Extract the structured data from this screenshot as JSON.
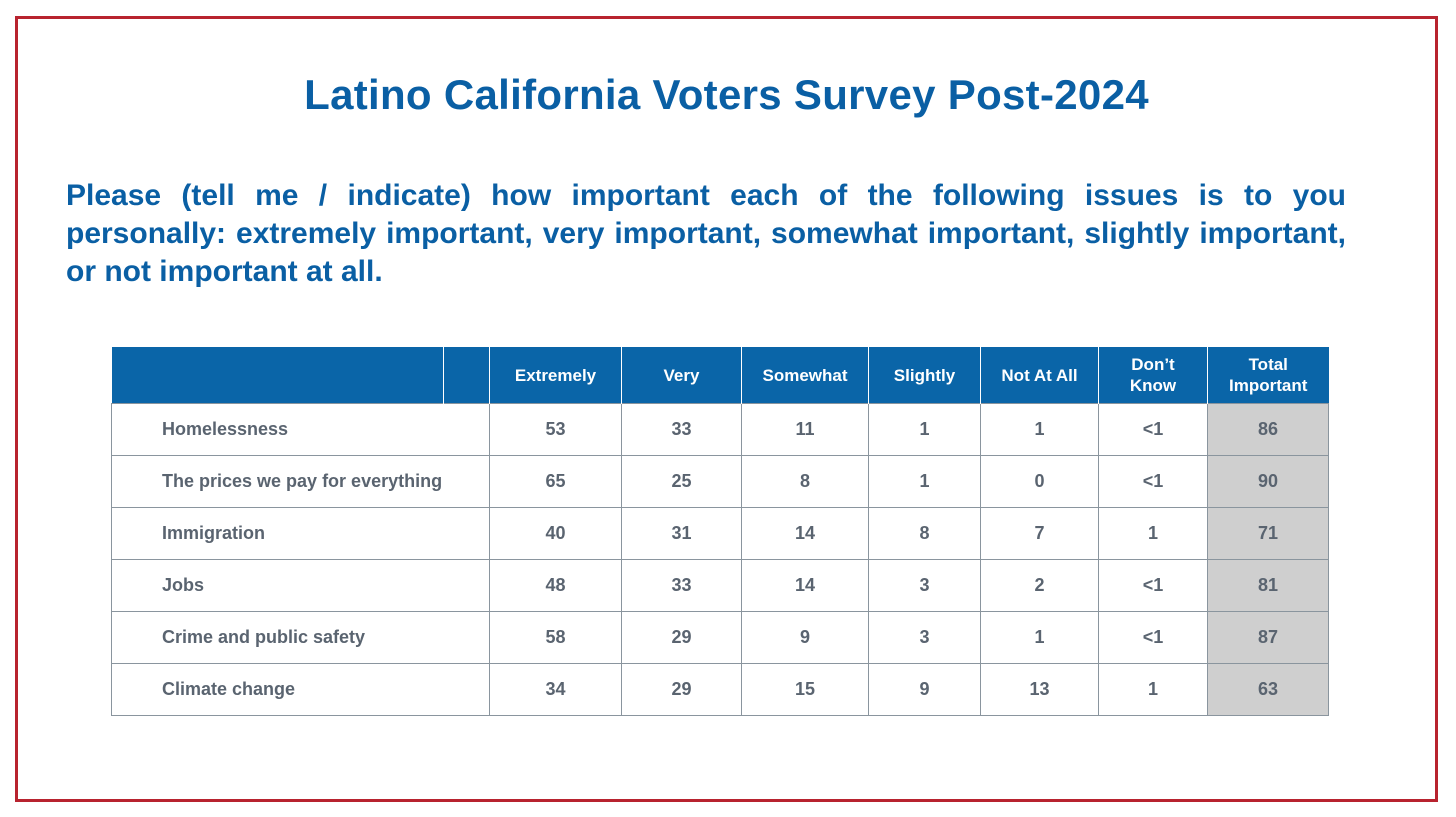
{
  "slide": {
    "title": "Latino California Voters Survey Post-2024",
    "question": "Please (tell me / indicate) how important each of the following issues is to you personally: extremely important, very important, somewhat important, slightly important, or not important at all.",
    "border_color": "#b8232f",
    "accent_color": "#0a5fa4"
  },
  "table": {
    "header_color": "#0a65a8",
    "total_column_color": "#cfcfcf",
    "columns": [
      "",
      "Extremely",
      "Very",
      "Somewhat",
      "Slightly",
      "Not At All",
      "Don’t Know",
      "Total Important"
    ],
    "rows": [
      {
        "issue": "Homelessness",
        "values": [
          "53",
          "33",
          "11",
          "1",
          "1",
          "<1",
          "86"
        ]
      },
      {
        "issue": "The prices we pay for everything",
        "values": [
          "65",
          "25",
          "8",
          "1",
          "0",
          "<1",
          "90"
        ]
      },
      {
        "issue": "Immigration",
        "values": [
          "40",
          "31",
          "14",
          "8",
          "7",
          "1",
          "71"
        ]
      },
      {
        "issue": "Jobs",
        "values": [
          "48",
          "33",
          "14",
          "3",
          "2",
          "<1",
          "81"
        ]
      },
      {
        "issue": "Crime and public safety",
        "values": [
          "58",
          "29",
          "9",
          "3",
          "1",
          "<1",
          "87"
        ]
      },
      {
        "issue": "Climate change",
        "values": [
          "34",
          "29",
          "15",
          "9",
          "13",
          "1",
          "63"
        ]
      }
    ]
  }
}
